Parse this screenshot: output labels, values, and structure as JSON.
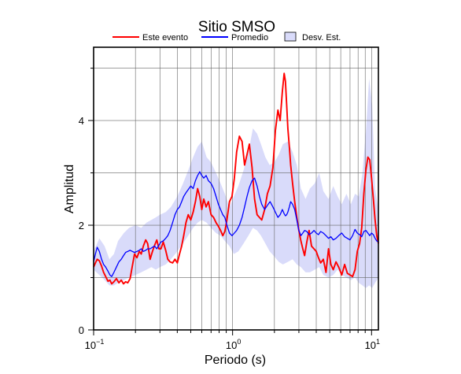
{
  "chart_data": {
    "type": "line",
    "title": "Sitio SMSO",
    "xlabel": "Periodo (s)",
    "ylabel": "Amplitud",
    "xscale": "log",
    "xlim": [
      0.1,
      11.2
    ],
    "ylim": [
      0,
      5.4
    ],
    "x_ticks": [
      {
        "value": 0.1,
        "base": "10",
        "exp": "−1"
      },
      {
        "value": 1,
        "base": "10",
        "exp": "0"
      },
      {
        "value": 10,
        "base": "10",
        "exp": "1"
      }
    ],
    "y_ticks": [
      {
        "value": 0,
        "label": "0"
      },
      {
        "value": 2,
        "label": "2"
      },
      {
        "value": 4,
        "label": "4"
      }
    ],
    "grid": true,
    "legend": {
      "position": "top",
      "entries": [
        {
          "label": "Este evento",
          "color": "#ff0000",
          "kind": "line"
        },
        {
          "label": "Promedio",
          "color": "#0000ff",
          "kind": "line"
        },
        {
          "label": "Desv. Est.",
          "color": "#d9dbfa",
          "kind": "box"
        }
      ]
    },
    "series": [
      {
        "name": "Este evento",
        "color": "#ff0000",
        "x": [
          0.1,
          0.103,
          0.106,
          0.11,
          0.114,
          0.118,
          0.122,
          0.127,
          0.131,
          0.135,
          0.14,
          0.146,
          0.152,
          0.158,
          0.164,
          0.17,
          0.176,
          0.183,
          0.19,
          0.197,
          0.205,
          0.213,
          0.22,
          0.228,
          0.237,
          0.245,
          0.255,
          0.265,
          0.275,
          0.285,
          0.295,
          0.305,
          0.317,
          0.33,
          0.342,
          0.355,
          0.37,
          0.385,
          0.4,
          0.415,
          0.43,
          0.445,
          0.462,
          0.48,
          0.5,
          0.52,
          0.54,
          0.56,
          0.58,
          0.6,
          0.62,
          0.645,
          0.67,
          0.7,
          0.73,
          0.76,
          0.79,
          0.82,
          0.85,
          0.88,
          0.91,
          0.95,
          0.99,
          1.03,
          1.07,
          1.12,
          1.17,
          1.22,
          1.27,
          1.32,
          1.38,
          1.44,
          1.5,
          1.56,
          1.62,
          1.7,
          1.78,
          1.86,
          1.95,
          2.03,
          2.12,
          2.2,
          2.28,
          2.35,
          2.4,
          2.45,
          2.5,
          2.56,
          2.62,
          2.7,
          2.8,
          2.9,
          3.0,
          3.1,
          3.2,
          3.3,
          3.42,
          3.55,
          3.7,
          3.85,
          4.0,
          4.15,
          4.3,
          4.5,
          4.7,
          4.9,
          5.1,
          5.3,
          5.55,
          5.8,
          6.1,
          6.4,
          6.7,
          7.0,
          7.3,
          7.6,
          7.9,
          8.2,
          8.5,
          8.8,
          9.1,
          9.4,
          9.7,
          10.0,
          10.3,
          10.6,
          10.9,
          11.2
        ],
        "values": [
          1.2,
          1.28,
          1.35,
          1.32,
          1.22,
          1.1,
          1.02,
          0.93,
          0.95,
          0.88,
          0.92,
          0.98,
          0.9,
          0.95,
          0.88,
          0.92,
          0.9,
          0.98,
          1.22,
          1.45,
          1.38,
          1.5,
          1.45,
          1.6,
          1.72,
          1.65,
          1.35,
          1.5,
          1.62,
          1.72,
          1.55,
          1.55,
          1.68,
          1.52,
          1.35,
          1.3,
          1.28,
          1.35,
          1.28,
          1.45,
          1.6,
          1.8,
          2.05,
          2.2,
          2.1,
          2.25,
          2.45,
          2.7,
          2.55,
          2.3,
          2.5,
          2.35,
          2.45,
          2.2,
          2.15,
          2.05,
          1.98,
          1.9,
          1.8,
          1.88,
          2.1,
          2.45,
          2.55,
          2.9,
          3.4,
          3.7,
          3.6,
          3.15,
          3.35,
          3.55,
          3.1,
          2.5,
          2.2,
          2.15,
          2.1,
          2.3,
          2.6,
          2.75,
          3.1,
          3.8,
          4.2,
          4.0,
          4.55,
          4.9,
          4.75,
          4.3,
          3.85,
          3.5,
          3.15,
          2.8,
          2.45,
          2.15,
          1.9,
          1.7,
          1.55,
          1.42,
          1.68,
          1.9,
          1.6,
          1.55,
          1.5,
          1.38,
          1.28,
          1.35,
          1.1,
          1.55,
          1.25,
          1.15,
          1.3,
          1.2,
          1.05,
          1.25,
          1.08,
          1.05,
          1.02,
          1.15,
          1.5,
          1.65,
          1.95,
          2.6,
          3.05,
          3.3,
          3.25,
          2.9,
          2.5,
          2.1,
          1.8,
          1.65
        ]
      },
      {
        "name": "Promedio",
        "color": "#0000ff",
        "x": [
          0.1,
          0.103,
          0.106,
          0.11,
          0.114,
          0.118,
          0.122,
          0.127,
          0.131,
          0.135,
          0.14,
          0.146,
          0.152,
          0.158,
          0.164,
          0.17,
          0.176,
          0.183,
          0.19,
          0.197,
          0.205,
          0.213,
          0.22,
          0.228,
          0.237,
          0.245,
          0.255,
          0.265,
          0.275,
          0.285,
          0.295,
          0.305,
          0.317,
          0.33,
          0.342,
          0.355,
          0.37,
          0.385,
          0.4,
          0.415,
          0.43,
          0.445,
          0.462,
          0.48,
          0.5,
          0.52,
          0.54,
          0.56,
          0.58,
          0.6,
          0.62,
          0.645,
          0.67,
          0.7,
          0.73,
          0.76,
          0.79,
          0.82,
          0.85,
          0.88,
          0.91,
          0.95,
          0.99,
          1.03,
          1.07,
          1.12,
          1.17,
          1.22,
          1.27,
          1.32,
          1.38,
          1.44,
          1.5,
          1.56,
          1.62,
          1.7,
          1.78,
          1.86,
          1.95,
          2.03,
          2.12,
          2.2,
          2.28,
          2.35,
          2.4,
          2.45,
          2.5,
          2.56,
          2.62,
          2.7,
          2.8,
          2.9,
          3.0,
          3.1,
          3.2,
          3.3,
          3.42,
          3.55,
          3.7,
          3.85,
          4.0,
          4.15,
          4.3,
          4.5,
          4.7,
          4.9,
          5.1,
          5.3,
          5.55,
          5.8,
          6.1,
          6.4,
          6.7,
          7.0,
          7.3,
          7.6,
          7.9,
          8.2,
          8.5,
          8.8,
          9.1,
          9.4,
          9.7,
          10.0,
          10.3,
          10.6,
          10.9,
          11.2
        ],
        "values": [
          1.3,
          1.45,
          1.58,
          1.5,
          1.35,
          1.25,
          1.2,
          1.12,
          1.05,
          1.02,
          1.1,
          1.2,
          1.3,
          1.35,
          1.42,
          1.48,
          1.5,
          1.52,
          1.5,
          1.48,
          1.5,
          1.52,
          1.55,
          1.5,
          1.52,
          1.55,
          1.55,
          1.58,
          1.6,
          1.55,
          1.62,
          1.68,
          1.7,
          1.75,
          1.8,
          1.9,
          2.05,
          2.2,
          2.3,
          2.35,
          2.45,
          2.55,
          2.62,
          2.68,
          2.75,
          2.7,
          2.85,
          2.95,
          3.02,
          2.95,
          2.9,
          2.95,
          2.85,
          2.8,
          2.7,
          2.55,
          2.4,
          2.3,
          2.2,
          2.15,
          2.0,
          1.85,
          1.8,
          1.85,
          1.9,
          2.0,
          2.15,
          2.35,
          2.55,
          2.72,
          2.85,
          2.9,
          2.75,
          2.55,
          2.4,
          2.3,
          2.38,
          2.45,
          2.35,
          2.25,
          2.15,
          2.2,
          2.3,
          2.22,
          2.18,
          2.2,
          2.25,
          2.35,
          2.45,
          2.4,
          2.3,
          2.1,
          1.9,
          1.8,
          1.85,
          1.9,
          1.88,
          1.82,
          1.85,
          1.9,
          1.85,
          1.82,
          1.88,
          1.85,
          1.8,
          1.75,
          1.78,
          1.72,
          1.75,
          1.8,
          1.85,
          1.78,
          1.75,
          1.72,
          1.8,
          1.92,
          1.85,
          1.82,
          1.78,
          1.88,
          1.9,
          1.85,
          1.8,
          1.85,
          1.82,
          1.75,
          1.7,
          1.68
        ]
      }
    ],
    "band": {
      "name": "Desv. Est.",
      "color": "#d9dbfa",
      "x": [
        0.1,
        0.11,
        0.12,
        0.13,
        0.14,
        0.15,
        0.165,
        0.18,
        0.2,
        0.22,
        0.24,
        0.26,
        0.28,
        0.3,
        0.33,
        0.36,
        0.4,
        0.44,
        0.48,
        0.52,
        0.56,
        0.6,
        0.65,
        0.7,
        0.76,
        0.82,
        0.88,
        0.95,
        1.02,
        1.1,
        1.2,
        1.3,
        1.4,
        1.5,
        1.6,
        1.72,
        1.85,
        2.0,
        2.15,
        2.3,
        2.5,
        2.7,
        2.9,
        3.1,
        3.35,
        3.6,
        3.9,
        4.2,
        4.5,
        4.9,
        5.3,
        5.7,
        6.1,
        6.6,
        7.1,
        7.6,
        8.1,
        8.6,
        9.1,
        9.6,
        10.1,
        10.6,
        11.2
      ],
      "upper": [
        1.5,
        1.75,
        1.6,
        1.35,
        1.45,
        1.7,
        1.85,
        1.95,
        2.0,
        1.95,
        2.05,
        2.1,
        2.15,
        2.2,
        2.25,
        2.35,
        2.55,
        2.8,
        3.05,
        3.3,
        3.5,
        3.6,
        3.3,
        3.2,
        3.0,
        2.8,
        2.6,
        2.35,
        2.55,
        2.75,
        3.05,
        3.4,
        3.85,
        3.75,
        3.55,
        3.3,
        3.15,
        3.2,
        3.35,
        3.55,
        3.6,
        3.4,
        3.15,
        2.7,
        2.5,
        2.7,
        2.8,
        3.0,
        2.65,
        2.5,
        2.75,
        2.55,
        2.4,
        2.6,
        2.4,
        2.6,
        2.55,
        3.0,
        3.8,
        4.8,
        4.3,
        2.7,
        2.3
      ],
      "lower": [
        1.15,
        1.05,
        0.95,
        0.85,
        0.85,
        0.9,
        0.95,
        1.0,
        1.05,
        1.1,
        1.15,
        1.2,
        1.15,
        1.2,
        1.25,
        1.35,
        1.5,
        1.65,
        1.8,
        1.95,
        2.05,
        2.1,
        2.05,
        1.95,
        1.85,
        1.8,
        1.7,
        1.6,
        1.45,
        1.5,
        1.65,
        1.8,
        1.95,
        1.9,
        1.8,
        1.65,
        1.5,
        1.4,
        1.3,
        1.25,
        1.3,
        1.35,
        1.25,
        1.2,
        1.1,
        1.1,
        1.15,
        1.2,
        1.05,
        1.0,
        1.05,
        1.15,
        1.05,
        1.0,
        0.95,
        1.0,
        0.9,
        0.85,
        0.8,
        0.85,
        0.8,
        0.9,
        1.0
      ]
    }
  }
}
